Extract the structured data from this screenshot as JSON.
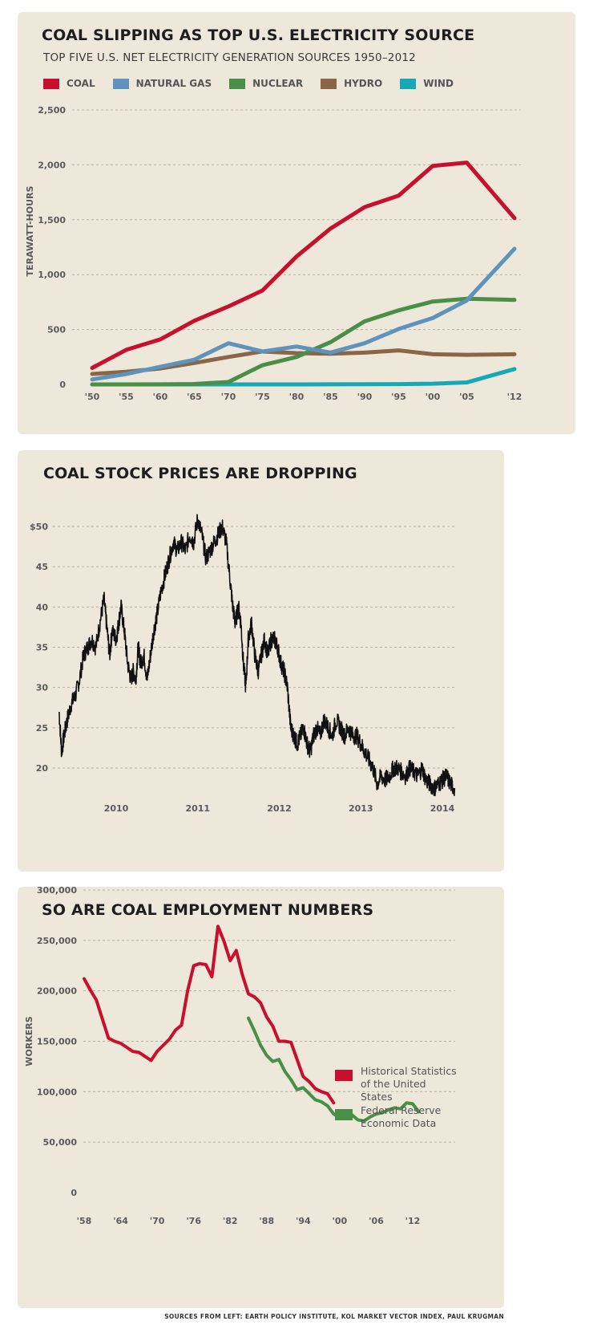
{
  "chart1": {
    "title": "COAL SLIPPING AS TOP U.S. ELECTRICITY SOURCE",
    "subtitle": "TOP FIVE U.S. NET ELECTRICITY GENERATION SOURCES 1950–2012",
    "legend": [
      {
        "label": "COAL",
        "color": "#c8102e"
      },
      {
        "label": "NATURAL GAS",
        "color": "#5e93bd"
      },
      {
        "label": "NUCLEAR",
        "color": "#4a8f47"
      },
      {
        "label": "HYDRO",
        "color": "#8a6548"
      },
      {
        "label": "WIND",
        "color": "#17a8b7"
      }
    ]
  },
  "chart2": {
    "title": "COAL STOCK PRICES ARE DROPPING"
  },
  "chart3": {
    "title": "SO ARE COAL EMPLOYMENT NUMBERS",
    "legend": [
      {
        "label": "Historical Statistics of the United States",
        "color": "#c8102e"
      },
      {
        "label": "Federal Reserve Economic Data",
        "color": "#4a8f47"
      }
    ]
  },
  "footer": {
    "sources": "SOURCES FROM LEFT: EARTH POLICY INSTITUTE, KOL MARKET VECTOR INDEX, PAUL KRUGMAN"
  },
  "chart_data": [
    {
      "type": "line",
      "title": "COAL SLIPPING AS TOP U.S. ELECTRICITY SOURCE",
      "subtitle": "TOP FIVE U.S. NET ELECTRICITY GENERATION SOURCES 1950–2012",
      "xlabel": "",
      "ylabel": "TERAWATT-HOURS",
      "x": [
        1950,
        1955,
        1960,
        1965,
        1970,
        1975,
        1980,
        1985,
        1990,
        1995,
        2000,
        2005,
        2012
      ],
      "x_tick_labels": [
        "'50",
        "'55",
        "'60",
        "'65",
        "'70",
        "'75",
        "'80",
        "'85",
        "'90",
        "'95",
        "'00",
        "'05",
        "'12"
      ],
      "y_ticks": [
        0,
        500,
        1000,
        1500,
        2000,
        2500
      ],
      "y_tick_labels": [
        "0",
        "500",
        "1,000",
        "1,500",
        "2,000",
        "2,500"
      ],
      "ylim": [
        0,
        2500
      ],
      "grid": true,
      "legend_position": "top",
      "series": [
        {
          "name": "COAL",
          "color": "#c8102e",
          "values": [
            150,
            315,
            410,
            580,
            710,
            855,
            1165,
            1420,
            1615,
            1720,
            1990,
            2020,
            1515
          ]
        },
        {
          "name": "NATURAL GAS",
          "color": "#5e93bd",
          "values": [
            45,
            95,
            160,
            225,
            375,
            300,
            345,
            290,
            375,
            505,
            605,
            765,
            1235
          ]
        },
        {
          "name": "NUCLEAR",
          "color": "#4a8f47",
          "values": [
            0,
            0,
            1,
            4,
            22,
            175,
            250,
            385,
            575,
            675,
            755,
            780,
            770
          ]
        },
        {
          "name": "HYDRO",
          "color": "#8a6548",
          "values": [
            95,
            115,
            145,
            195,
            250,
            300,
            285,
            280,
            290,
            310,
            275,
            270,
            275
          ]
        },
        {
          "name": "WIND",
          "color": "#17a8b7",
          "values": [
            0,
            0,
            0,
            0,
            0,
            0,
            0,
            1,
            2,
            3,
            6,
            18,
            140
          ]
        }
      ]
    },
    {
      "type": "line",
      "title": "COAL STOCK PRICES ARE DROPPING",
      "xlabel": "",
      "ylabel": "",
      "x_tick_labels": [
        "2010",
        "2011",
        "2012",
        "2013",
        "2014"
      ],
      "x_tick_values": [
        2010,
        2011,
        2012,
        2013,
        2014
      ],
      "y_ticks": [
        20,
        25,
        30,
        35,
        40,
        45,
        50
      ],
      "y_tick_labels": [
        "20",
        "25",
        "30",
        "35",
        "40",
        "45",
        "$50"
      ],
      "ylim": [
        17,
        53
      ],
      "grid": true,
      "series": [
        {
          "name": "Coal stock price",
          "color": "#111111",
          "x": [
            2009.3,
            2009.33,
            2009.36,
            2009.4,
            2009.45,
            2009.5,
            2009.55,
            2009.6,
            2009.65,
            2009.7,
            2009.75,
            2009.8,
            2009.85,
            2009.88,
            2009.92,
            2009.95,
            2010.0,
            2010.03,
            2010.06,
            2010.1,
            2010.14,
            2010.18,
            2010.21,
            2010.24,
            2010.27,
            2010.3,
            2010.34,
            2010.38,
            2010.42,
            2010.46,
            2010.5,
            2010.55,
            2010.6,
            2010.65,
            2010.7,
            2010.75,
            2010.8,
            2010.85,
            2010.9,
            2010.95,
            2011.0,
            2011.05,
            2011.1,
            2011.15,
            2011.2,
            2011.25,
            2011.3,
            2011.35,
            2011.4,
            2011.43,
            2011.46,
            2011.5,
            2011.53,
            2011.56,
            2011.59,
            2011.62,
            2011.66,
            2011.7,
            2011.74,
            2011.78,
            2011.82,
            2011.86,
            2011.9,
            2011.94,
            2011.98,
            2012.02,
            2012.06,
            2012.1,
            2012.14,
            2012.18,
            2012.22,
            2012.26,
            2012.3,
            2012.34,
            2012.38,
            2012.42,
            2012.46,
            2012.5,
            2012.55,
            2012.6,
            2012.65,
            2012.7,
            2012.75,
            2012.8,
            2012.85,
            2012.9,
            2012.95,
            2013.0,
            2013.05,
            2013.1,
            2013.15,
            2013.2,
            2013.25,
            2013.3,
            2013.35,
            2013.4,
            2013.45,
            2013.5,
            2013.55,
            2013.6,
            2013.65,
            2013.7,
            2013.75,
            2013.8,
            2013.85,
            2013.9,
            2013.95,
            2014.0,
            2014.05,
            2014.1,
            2014.15
          ],
          "values": [
            27,
            22,
            24,
            26,
            28,
            29,
            31,
            34,
            35,
            36,
            35,
            38,
            41,
            38,
            34,
            37,
            36,
            38,
            40,
            37,
            33,
            31,
            32,
            31,
            35,
            33,
            34,
            31,
            34,
            37,
            39,
            42,
            44,
            46,
            48,
            47,
            48,
            47,
            49,
            48,
            51,
            49,
            46,
            47,
            48,
            49,
            50,
            48,
            43,
            40,
            38,
            40,
            38,
            33,
            30,
            36,
            38,
            34,
            32,
            34,
            36,
            34,
            36,
            36,
            35,
            33,
            32,
            30,
            25,
            24,
            23,
            24,
            25,
            23,
            22,
            24,
            25,
            24,
            26,
            25,
            24,
            26,
            25,
            24,
            25,
            24,
            24,
            23,
            22,
            21,
            20,
            18,
            19,
            18.5,
            19,
            20,
            20,
            19.5,
            19,
            20,
            19.5,
            19,
            20,
            18.5,
            18,
            17.5,
            18,
            18.5,
            19,
            18,
            17.5
          ]
        }
      ]
    },
    {
      "type": "line",
      "title": "SO ARE COAL EMPLOYMENT NUMBERS",
      "xlabel": "",
      "ylabel": "WORKERS",
      "x_tick_labels": [
        "'58",
        "'64",
        "'70",
        "'76",
        "'82",
        "'88",
        "'94",
        "'00",
        "'06",
        "'12"
      ],
      "x_tick_values": [
        1958,
        1964,
        1970,
        1976,
        1982,
        1988,
        1994,
        2000,
        2006,
        2012
      ],
      "y_ticks": [
        0,
        50000,
        100000,
        150000,
        200000,
        250000,
        300000
      ],
      "y_tick_labels": [
        "0",
        "50,000",
        "100,000",
        "150,000",
        "200,000",
        "250,000",
        "300,000"
      ],
      "ylim": [
        0,
        300000
      ],
      "grid": true,
      "legend_position": "right",
      "series": [
        {
          "name": "Historical Statistics of the United States",
          "color": "#c8102e",
          "x": [
            1958,
            1959,
            1960,
            1961,
            1962,
            1963,
            1964,
            1965,
            1966,
            1967,
            1968,
            1969,
            1970,
            1971,
            1972,
            1973,
            1974,
            1975,
            1976,
            1977,
            1978,
            1979,
            1980,
            1981,
            1982,
            1983,
            1984,
            1985,
            1986,
            1987,
            1988,
            1989,
            1990,
            1991,
            1992,
            1993,
            1994,
            1995,
            1996,
            1997,
            1998,
            1999
          ],
          "values": [
            212000,
            201000,
            191000,
            172000,
            153000,
            150000,
            148000,
            144000,
            140000,
            139000,
            135000,
            131000,
            140000,
            146000,
            152000,
            161000,
            166000,
            200000,
            225000,
            227000,
            226000,
            214000,
            264000,
            249000,
            230000,
            240000,
            216000,
            197000,
            194000,
            188000,
            174000,
            165000,
            150000,
            150000,
            149000,
            132000,
            115000,
            110000,
            103000,
            100000,
            98000,
            89000
          ]
        },
        {
          "name": "Federal Reserve Economic Data",
          "color": "#4a8f47",
          "x": [
            1985,
            1986,
            1987,
            1988,
            1989,
            1990,
            1991,
            1992,
            1993,
            1994,
            1995,
            1996,
            1997,
            1998,
            1999,
            2000,
            2001,
            2002,
            2003,
            2004,
            2005,
            2006,
            2007,
            2008,
            2009,
            2010,
            2011,
            2012,
            2013
          ],
          "values": [
            173000,
            160000,
            146000,
            136000,
            130000,
            132000,
            120000,
            112000,
            102000,
            104000,
            98000,
            92000,
            90000,
            86000,
            78000,
            74000,
            75000,
            77000,
            72000,
            71000,
            75000,
            78000,
            79000,
            82000,
            84000,
            83000,
            89000,
            88000,
            80000
          ]
        }
      ]
    }
  ]
}
